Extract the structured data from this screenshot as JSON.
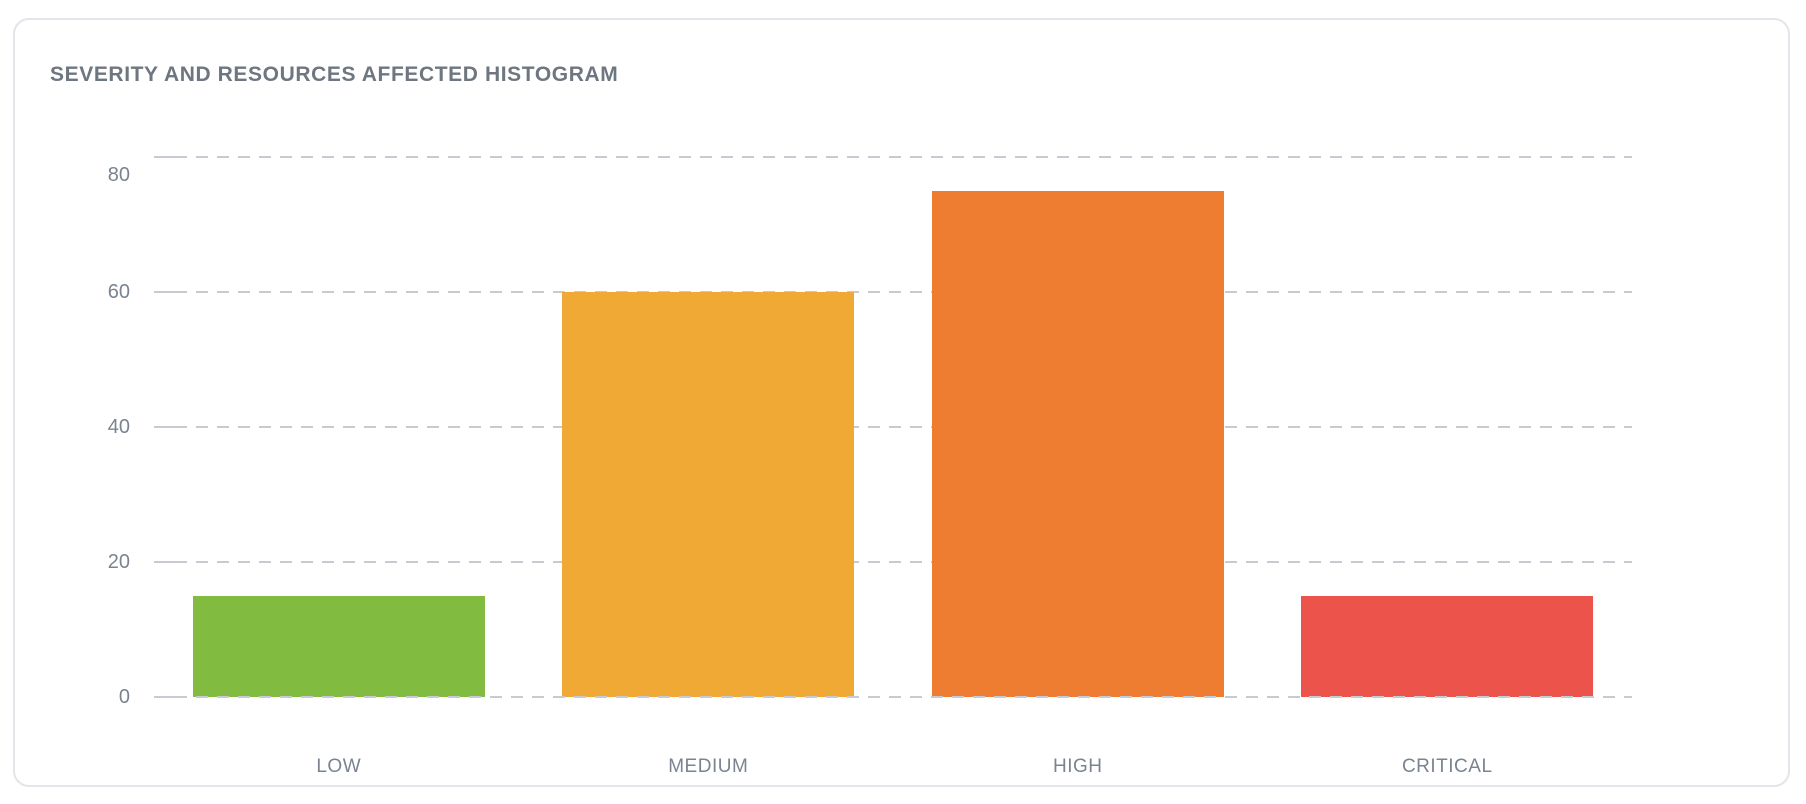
{
  "window": {
    "background": "#ffffff"
  },
  "card": {
    "background": "#ffffff",
    "border_color": "#e2e5e9"
  },
  "chart": {
    "title": "SEVERITY AND RESOURCES AFFECTED HISTOGRAM",
    "title_color": "#6e7680"
  },
  "chart_data": {
    "type": "bar",
    "title": "SEVERITY AND RESOURCES AFFECTED HISTOGRAM",
    "categories": [
      "LOW",
      "MEDIUM",
      "HIGH",
      "CRITICAL"
    ],
    "values": [
      15,
      60,
      75,
      15
    ],
    "bar_colors": [
      "#81bc40",
      "#f0a935",
      "#ee7d31",
      "#ec544b"
    ],
    "xlabel": "",
    "ylabel": "",
    "ylim": [
      0,
      80
    ],
    "yticks": [
      0,
      20,
      40,
      60,
      80
    ],
    "grid": "horizontal-dashed",
    "gridline_color": "#c7cbd1",
    "tick_label_color": "#7a8490",
    "legend_position": "none"
  }
}
